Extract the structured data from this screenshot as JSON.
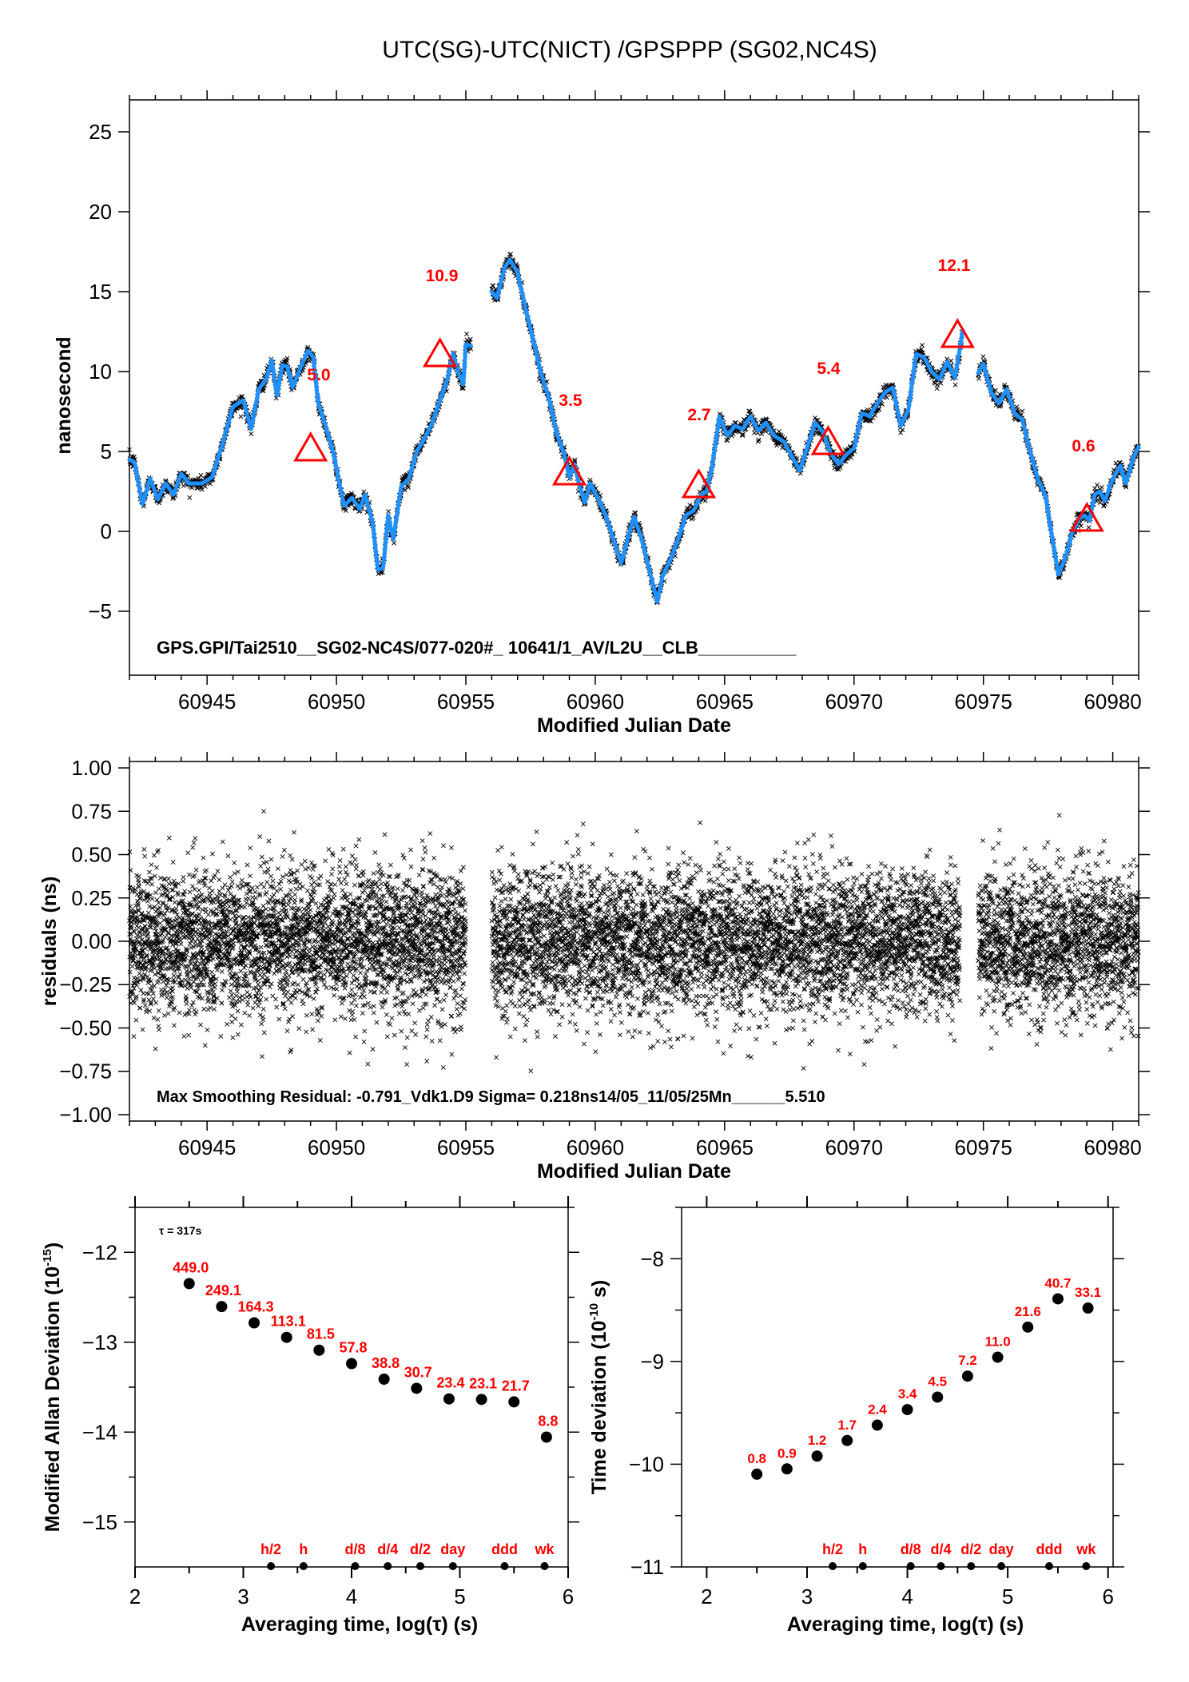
{
  "figure_title": "UTC(SG)-UTC(NICT)  /GPSPPP  (SG02,NC4S)",
  "chart_data": [
    {
      "id": "offset",
      "type": "line",
      "title": "UTC(SG)-UTC(NICT)  /GPSPPP  (SG02,NC4S)",
      "xlabel": "Modified Julian Date",
      "ylabel": "nanosecond",
      "xlim": [
        60942,
        60981
      ],
      "ylim": [
        -9,
        27
      ],
      "xticks": [
        60945,
        60950,
        60955,
        60960,
        60965,
        60970,
        60975,
        60980
      ],
      "xtick_labels": [
        "60945",
        "60950",
        "60955",
        "60960",
        "60965",
        "60970",
        "60975",
        "60980"
      ],
      "xminor_step": 1,
      "yticks": [
        -5,
        0,
        5,
        10,
        15,
        20,
        25
      ],
      "ytick_labels": [
        "−5",
        "0",
        "5",
        "10",
        "15",
        "20",
        "25"
      ],
      "annotation": "GPS.GPI/Tai2510__SG02-NC4S/077-020#_  10641/1_AV/L2U__CLB__________",
      "line_color": "#1e90ff",
      "raw_marker_color": "#000000",
      "raw_noise_sigma_ns": 0.22,
      "series": [
        {
          "name": "smoothed",
          "segments": [
            [
              [
                60942.0,
                4.5
              ],
              [
                60942.2,
                4.3
              ],
              [
                60942.5,
                1.7
              ],
              [
                60942.8,
                3.3
              ],
              [
                60943.1,
                2.0
              ],
              [
                60943.4,
                3.0
              ],
              [
                60943.7,
                2.3
              ],
              [
                60944.0,
                3.6
              ],
              [
                60944.3,
                3.0
              ],
              [
                60944.8,
                3.0
              ],
              [
                60945.2,
                3.4
              ],
              [
                60945.6,
                5.5
              ],
              [
                60946.0,
                7.8
              ],
              [
                60946.4,
                8.2
              ],
              [
                60946.7,
                6.4
              ],
              [
                60947.0,
                8.9
              ],
              [
                60947.3,
                9.6
              ],
              [
                60947.5,
                10.7
              ],
              [
                60947.7,
                8.5
              ],
              [
                60947.9,
                10.4
              ],
              [
                60948.1,
                10.3
              ],
              [
                60948.3,
                9.0
              ],
              [
                60948.6,
                10.2
              ],
              [
                60948.9,
                11.3
              ],
              [
                60949.1,
                10.9
              ],
              [
                60949.3,
                8.0
              ],
              [
                60949.6,
                6.5
              ],
              [
                60949.9,
                4.8
              ],
              [
                60950.1,
                3.1
              ],
              [
                60950.3,
                1.6
              ],
              [
                60950.6,
                2.1
              ],
              [
                60950.9,
                1.4
              ],
              [
                60951.1,
                2.3
              ],
              [
                60951.4,
                0.5
              ],
              [
                60951.6,
                -2.4
              ],
              [
                60951.8,
                -2.3
              ],
              [
                60952.0,
                1.0
              ],
              [
                60952.2,
                -0.5
              ],
              [
                60952.5,
                2.8
              ],
              [
                60952.8,
                3.3
              ],
              [
                60953.1,
                5.0
              ],
              [
                60953.4,
                5.8
              ],
              [
                60953.7,
                6.8
              ],
              [
                60954.0,
                8.2
              ],
              [
                60954.3,
                9.6
              ],
              [
                60954.5,
                11.1
              ],
              [
                60954.7,
                10.0
              ],
              [
                60954.9,
                9.2
              ],
              [
                60955.0,
                11.7
              ],
              [
                60955.2,
                11.6
              ]
            ],
            [
              [
                60956.0,
                15.0
              ],
              [
                60956.2,
                14.6
              ],
              [
                60956.5,
                16.5
              ],
              [
                60956.7,
                17.0
              ],
              [
                60957.0,
                16.2
              ],
              [
                60957.3,
                14.0
              ],
              [
                60957.6,
                12.0
              ],
              [
                60957.9,
                9.9
              ],
              [
                60958.2,
                8.4
              ],
              [
                60958.5,
                6.2
              ],
              [
                60958.8,
                4.8
              ],
              [
                60959.0,
                3.4
              ],
              [
                60959.2,
                4.2
              ],
              [
                60959.4,
                2.8
              ],
              [
                60959.6,
                1.8
              ],
              [
                60959.8,
                3.0
              ],
              [
                60960.1,
                2.1
              ],
              [
                60960.4,
                1.0
              ],
              [
                60960.7,
                -0.5
              ],
              [
                60961.0,
                -2.0
              ],
              [
                60961.3,
                -0.2
              ],
              [
                60961.5,
                0.9
              ],
              [
                60961.8,
                -0.5
              ],
              [
                60962.1,
                -2.5
              ],
              [
                60962.4,
                -4.4
              ],
              [
                60962.6,
                -2.8
              ],
              [
                60962.9,
                -1.8
              ],
              [
                60963.2,
                -0.5
              ],
              [
                60963.5,
                1.0
              ],
              [
                60963.8,
                1.3
              ],
              [
                60964.1,
                2.3
              ],
              [
                60964.3,
                2.5
              ],
              [
                60964.5,
                3.9
              ],
              [
                60964.8,
                7.2
              ],
              [
                60965.1,
                6.0
              ],
              [
                60965.4,
                6.6
              ],
              [
                60965.7,
                6.4
              ],
              [
                60966.0,
                7.2
              ],
              [
                60966.3,
                6.3
              ],
              [
                60966.6,
                6.8
              ],
              [
                60966.9,
                6.0
              ],
              [
                60967.3,
                5.6
              ],
              [
                60967.6,
                4.7
              ],
              [
                60967.9,
                3.8
              ],
              [
                60968.2,
                5.3
              ],
              [
                60968.5,
                6.8
              ],
              [
                60968.8,
                6.2
              ],
              [
                60969.1,
                4.9
              ],
              [
                60969.4,
                4.2
              ],
              [
                60969.7,
                4.8
              ],
              [
                60970.0,
                5.2
              ],
              [
                60970.3,
                7.4
              ],
              [
                60970.6,
                7.2
              ],
              [
                60970.9,
                8.0
              ],
              [
                60971.2,
                8.7
              ],
              [
                60971.5,
                9.0
              ],
              [
                60971.8,
                6.6
              ],
              [
                60972.1,
                7.6
              ],
              [
                60972.4,
                11.1
              ],
              [
                60972.7,
                10.9
              ],
              [
                60973.0,
                10.0
              ],
              [
                60973.3,
                9.5
              ],
              [
                60973.6,
                10.6
              ],
              [
                60973.9,
                9.6
              ],
              [
                60974.1,
                11.5
              ],
              [
                60974.2,
                12.6
              ]
            ],
            [
              [
                60974.8,
                9.9
              ],
              [
                60975.0,
                10.5
              ],
              [
                60975.3,
                8.7
              ],
              [
                60975.6,
                8.0
              ],
              [
                60975.9,
                8.9
              ],
              [
                60976.2,
                7.4
              ],
              [
                60976.5,
                7.0
              ],
              [
                60976.8,
                5.0
              ],
              [
                60977.1,
                3.3
              ],
              [
                60977.4,
                2.2
              ],
              [
                60977.7,
                -0.8
              ],
              [
                60977.9,
                -2.7
              ],
              [
                60978.2,
                -1.5
              ],
              [
                60978.4,
                -0.2
              ],
              [
                60978.7,
                0.8
              ],
              [
                60978.9,
                1.0
              ],
              [
                60979.1,
                0.7
              ],
              [
                60979.3,
                2.3
              ],
              [
                60979.5,
                2.5
              ],
              [
                60979.7,
                1.9
              ],
              [
                60979.9,
                2.9
              ],
              [
                60980.1,
                3.6
              ],
              [
                60980.3,
                4.1
              ],
              [
                60980.5,
                3.0
              ],
              [
                60980.8,
                4.6
              ],
              [
                60981.0,
                5.3
              ]
            ]
          ]
        }
      ],
      "markers": [
        {
          "mjd": 60949.0,
          "value": 5.0,
          "label": "5.0"
        },
        {
          "mjd": 60954.0,
          "value": 10.9,
          "label": "10.9"
        },
        {
          "mjd": 60959.0,
          "value": 3.5,
          "label": "3.5"
        },
        {
          "mjd": 60964.0,
          "value": 2.7,
          "label": "2.7"
        },
        {
          "mjd": 60969.0,
          "value": 5.4,
          "label": "5.4"
        },
        {
          "mjd": 60974.0,
          "value": 12.1,
          "label": "12.1"
        },
        {
          "mjd": 60979.0,
          "value": 0.6,
          "label": "0.6"
        }
      ]
    },
    {
      "id": "residuals",
      "type": "scatter",
      "xlabel": "Modified Julian Date",
      "ylabel": "residuals (ns)",
      "xlim": [
        60942,
        60981
      ],
      "ylim": [
        -1.037,
        1.037
      ],
      "xticks": [
        60945,
        60950,
        60955,
        60960,
        60965,
        60970,
        60975,
        60980
      ],
      "xtick_labels": [
        "60945",
        "60950",
        "60955",
        "60960",
        "60965",
        "60970",
        "60975",
        "60980"
      ],
      "yticks": [
        -1.0,
        -0.75,
        -0.5,
        -0.25,
        0.0,
        0.25,
        0.5,
        0.75,
        1.0
      ],
      "ytick_labels": [
        "−1.00",
        "−0.75",
        "−0.50",
        "−0.25",
        "0.00",
        "0.25",
        "0.50",
        "0.75",
        "1.00"
      ],
      "annotation": "Max Smoothing Residual: -0.791_Vdk1.D9  Sigma= 0.218ns14/05_11/05/25Mn______5.510",
      "sigma_ns": 0.218,
      "max_residual_ns": -0.791,
      "data_spans": [
        [
          60942.0,
          60955.0
        ],
        [
          60956.0,
          60974.1
        ],
        [
          60974.8,
          60981.0
        ]
      ],
      "sample_interval_s": 300
    },
    {
      "id": "mdev",
      "type": "scatter",
      "xlabel": "Averaging time, log(τ) (s)",
      "ylabel": "Modified Allan Deviation (10",
      "ylabel_sup": "-15",
      "ylabel_end": ")",
      "tau0_label": "τ = 317s",
      "xlim": [
        2,
        6
      ],
      "ylim": [
        -15.5,
        -11.5
      ],
      "xticks": [
        2,
        3,
        4,
        5,
        6
      ],
      "xtick_labels": [
        "2",
        "3",
        "4",
        "5",
        "6"
      ],
      "yticks": [
        -15,
        -14,
        -13,
        -12
      ],
      "ytick_labels": [
        "−15",
        "−14",
        "−13",
        "−12"
      ],
      "x": [
        2.5,
        2.8,
        3.1,
        3.4,
        3.7,
        4.0,
        4.3,
        4.6,
        4.9,
        5.2,
        5.5,
        5.8
      ],
      "values_e15": [
        449.0,
        249.1,
        164.3,
        113.1,
        81.5,
        57.8,
        38.8,
        30.7,
        23.4,
        23.1,
        21.7,
        8.8
      ],
      "labels": [
        "449.0",
        "249.1",
        "164.3",
        "113.1",
        "81.5",
        "57.8",
        "38.8",
        "30.7",
        "23.4",
        "23.1",
        "21.7",
        "8.8"
      ],
      "scale_exp": -15,
      "time_markers": [
        {
          "label": "h/2",
          "x": 3.255
        },
        {
          "label": "h",
          "x": 3.556
        },
        {
          "label": "d/8",
          "x": 4.033
        },
        {
          "label": "d/4",
          "x": 4.334
        },
        {
          "label": "d/2",
          "x": 4.635
        },
        {
          "label": "day",
          "x": 4.936
        },
        {
          "label": "ddd",
          "x": 5.413
        },
        {
          "label": "wk",
          "x": 5.782
        }
      ]
    },
    {
      "id": "tdev",
      "type": "scatter",
      "xlabel": "Averaging time, log(τ) (s)",
      "ylabel": "Time deviation (10",
      "ylabel_sup": "-10",
      "ylabel_end": " s)",
      "xlim": [
        1.75,
        6.05
      ],
      "ylim": [
        -11,
        -7.5
      ],
      "xticks": [
        2,
        3,
        4,
        5,
        6
      ],
      "xtick_labels": [
        "2",
        "3",
        "4",
        "5",
        "6"
      ],
      "yticks": [
        -11,
        -10,
        -9,
        -8
      ],
      "ytick_labels": [
        "−11",
        "−10",
        "−9",
        "−8"
      ],
      "x": [
        2.5,
        2.8,
        3.1,
        3.4,
        3.7,
        4.0,
        4.3,
        4.6,
        4.9,
        5.2,
        5.5,
        5.8
      ],
      "values_e10": [
        0.8,
        0.9,
        1.2,
        1.7,
        2.4,
        3.4,
        4.5,
        7.2,
        11.0,
        21.6,
        40.7,
        33.1
      ],
      "labels": [
        "0.8",
        "0.9",
        "1.2",
        "1.7",
        "2.4",
        "3.4",
        "4.5",
        "7.2",
        "11.0",
        "21.6",
        "40.7",
        "33.1"
      ],
      "scale_exp": -10,
      "time_markers": [
        {
          "label": "h/2",
          "x": 3.255
        },
        {
          "label": "h",
          "x": 3.556
        },
        {
          "label": "d/8",
          "x": 4.033
        },
        {
          "label": "d/4",
          "x": 4.334
        },
        {
          "label": "d/2",
          "x": 4.635
        },
        {
          "label": "day",
          "x": 4.936
        },
        {
          "label": "ddd",
          "x": 5.413
        },
        {
          "label": "wk",
          "x": 5.782
        }
      ]
    }
  ]
}
